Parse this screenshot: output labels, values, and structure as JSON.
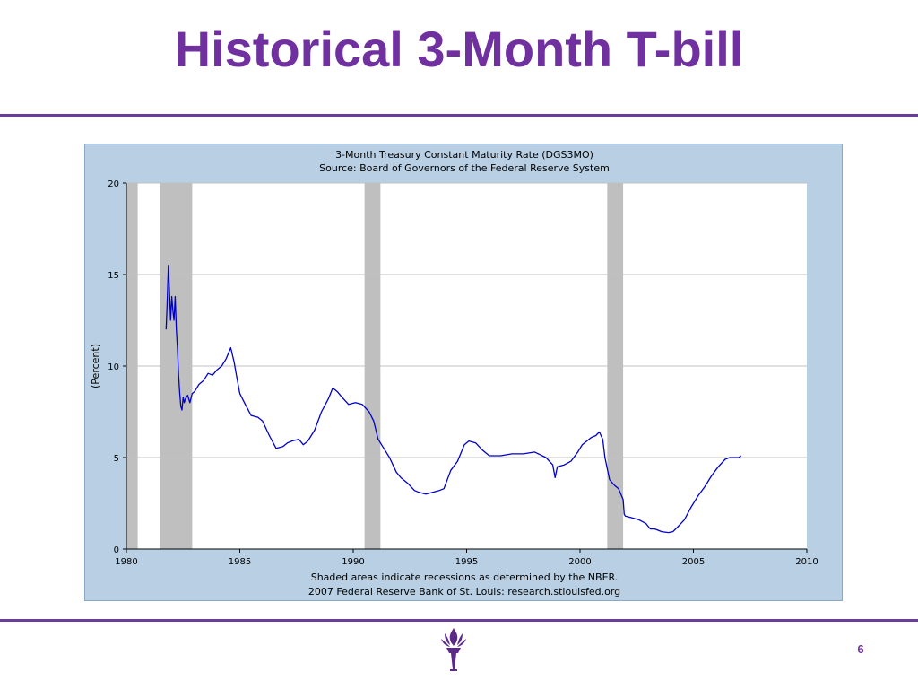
{
  "slide": {
    "title": "Historical 3-Month T-bill",
    "page_number": "6"
  },
  "colors": {
    "title": "#7030a0",
    "rule": "#6a3d9a",
    "chart_background": "#b8cfe4",
    "plot_background": "#ffffff",
    "series_line": "#0000cc",
    "recession_shade": "#bfbfbf",
    "gridline": "#c0c0c0"
  },
  "logo": {
    "icon": "torch-icon"
  },
  "chart_data": {
    "type": "line",
    "title": "3-Month Treasury Constant Maturity Rate (DGS3MO)",
    "subtitle": "Source: Board of Governors of the Federal Reserve System",
    "xlabel": "",
    "ylabel": "(Percent)",
    "xlim": [
      1980,
      2010
    ],
    "ylim": [
      0,
      20
    ],
    "x_ticks": [
      1980,
      1985,
      1990,
      1995,
      2000,
      2005,
      2010
    ],
    "y_ticks": [
      0,
      5,
      10,
      15,
      20
    ],
    "grid": true,
    "footnotes": [
      "Shaded areas indicate recessions as determined by the NBER.",
      "2007 Federal Reserve Bank of St. Louis: research.stlouisfed.org"
    ],
    "recessions": [
      [
        1980.0,
        1980.5
      ],
      [
        1981.5,
        1982.9
      ],
      [
        1990.5,
        1991.2
      ],
      [
        2001.2,
        2001.9
      ]
    ],
    "series": [
      {
        "x": [
          1981.75,
          1981.8,
          1981.85,
          1981.9,
          1981.95,
          1982.0,
          1982.05,
          1982.1,
          1982.15,
          1982.2,
          1982.25,
          1982.3,
          1982.35,
          1982.4,
          1982.45,
          1982.5,
          1982.55,
          1982.6,
          1982.7,
          1982.8,
          1982.9,
          1983.0,
          1983.2,
          1983.4,
          1983.6,
          1983.8,
          1984.0,
          1984.2,
          1984.4,
          1984.6,
          1984.75,
          1984.85,
          1985.0,
          1985.2,
          1985.5,
          1985.8,
          1986.0,
          1986.3,
          1986.6,
          1986.9,
          1987.1,
          1987.3,
          1987.6,
          1987.8,
          1988.0,
          1988.3,
          1988.6,
          1988.9,
          1989.1,
          1989.3,
          1989.5,
          1989.8,
          1990.1,
          1990.4,
          1990.7,
          1990.9,
          1991.1,
          1991.3,
          1991.6,
          1991.9,
          1992.1,
          1992.4,
          1992.7,
          1992.9,
          1993.2,
          1993.5,
          1993.8,
          1994.0,
          1994.3,
          1994.6,
          1994.9,
          1995.1,
          1995.4,
          1995.7,
          1996.0,
          1996.5,
          1997.0,
          1997.5,
          1998.0,
          1998.5,
          1998.8,
          1998.9,
          1999.0,
          1999.3,
          1999.6,
          1999.9,
          2000.1,
          2000.3,
          2000.5,
          2000.7,
          2000.85,
          2001.0,
          2001.1,
          2001.3,
          2001.5,
          2001.7,
          2001.9,
          2001.95,
          2002.0,
          2002.3,
          2002.6,
          2002.9,
          2003.1,
          2003.3,
          2003.6,
          2003.9,
          2004.1,
          2004.3,
          2004.6,
          2004.9,
          2005.2,
          2005.5,
          2005.8,
          2006.1,
          2006.4,
          2006.6,
          2006.8,
          2007.0,
          2007.1
        ],
        "values": [
          12.0,
          13.5,
          15.5,
          14.0,
          12.5,
          13.8,
          13.0,
          12.5,
          13.8,
          12.0,
          11.0,
          9.5,
          8.5,
          7.8,
          7.6,
          8.3,
          8.0,
          8.2,
          8.4,
          8.0,
          8.5,
          8.6,
          9.0,
          9.2,
          9.6,
          9.5,
          9.8,
          10.0,
          10.4,
          11.0,
          10.2,
          9.5,
          8.5,
          8.0,
          7.3,
          7.2,
          7.0,
          6.2,
          5.5,
          5.6,
          5.8,
          5.9,
          6.0,
          5.7,
          5.9,
          6.5,
          7.5,
          8.2,
          8.8,
          8.6,
          8.3,
          7.9,
          8.0,
          7.9,
          7.5,
          7.0,
          6.0,
          5.6,
          5.0,
          4.2,
          3.9,
          3.6,
          3.2,
          3.1,
          3.0,
          3.1,
          3.2,
          3.3,
          4.3,
          4.8,
          5.7,
          5.9,
          5.8,
          5.4,
          5.1,
          5.1,
          5.2,
          5.2,
          5.3,
          5.0,
          4.6,
          3.9,
          4.5,
          4.6,
          4.8,
          5.3,
          5.7,
          5.9,
          6.1,
          6.2,
          6.4,
          6.0,
          5.0,
          3.8,
          3.5,
          3.3,
          2.7,
          1.9,
          1.8,
          1.7,
          1.6,
          1.4,
          1.1,
          1.1,
          0.95,
          0.9,
          0.95,
          1.2,
          1.6,
          2.3,
          2.9,
          3.4,
          4.0,
          4.5,
          4.9,
          5.0,
          5.0,
          5.0,
          5.1
        ]
      }
    ]
  }
}
